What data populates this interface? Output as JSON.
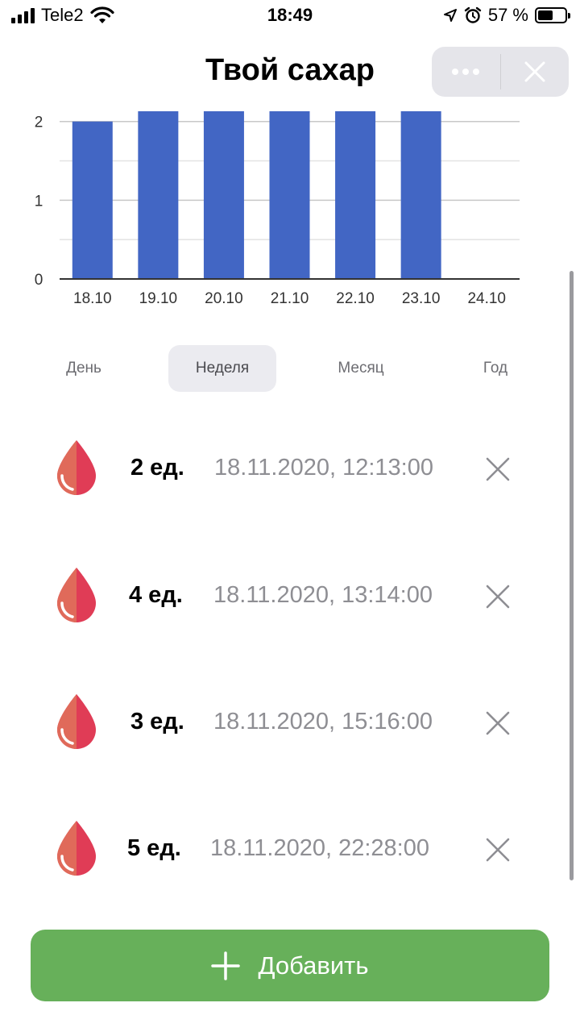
{
  "status_bar": {
    "carrier": "Tele2",
    "time": "18:49",
    "battery": "57 %",
    "battery_level": 0.57
  },
  "header": {
    "title": "Твой сахар"
  },
  "chart_data": {
    "type": "bar",
    "categories": [
      "18.10",
      "19.10",
      "20.10",
      "21.10",
      "22.10",
      "23.10",
      "24.10"
    ],
    "values": [
      2,
      2.13,
      2.13,
      2.13,
      2.13,
      2.13,
      0
    ],
    "yticks": [
      "0",
      "1",
      "2"
    ],
    "ylim": [
      0,
      2.13
    ],
    "grid": true,
    "bar_color": "#4266c4"
  },
  "tabs": [
    {
      "label": "День",
      "active": false
    },
    {
      "label": "Неделя",
      "active": true
    },
    {
      "label": "Месяц",
      "active": false
    },
    {
      "label": "Год",
      "active": false
    }
  ],
  "entries": [
    {
      "amount": "2 ед.",
      "datetime": "18.11.2020, 12:13:00"
    },
    {
      "amount": "4 ед.",
      "datetime": "18.11.2020, 13:14:00"
    },
    {
      "amount": "3 ед.",
      "datetime": "18.11.2020, 15:16:00"
    },
    {
      "amount": "5 ед.",
      "datetime": "18.11.2020, 22:28:00"
    }
  ],
  "add_button": {
    "label": "Добавить"
  },
  "icons": {
    "entry": "blood-drop-icon",
    "delete": "close-icon",
    "add": "plus-icon"
  },
  "colors": {
    "accent": "#67b05a",
    "drop_left": "#e06a5a",
    "drop_right": "#e03c56"
  }
}
